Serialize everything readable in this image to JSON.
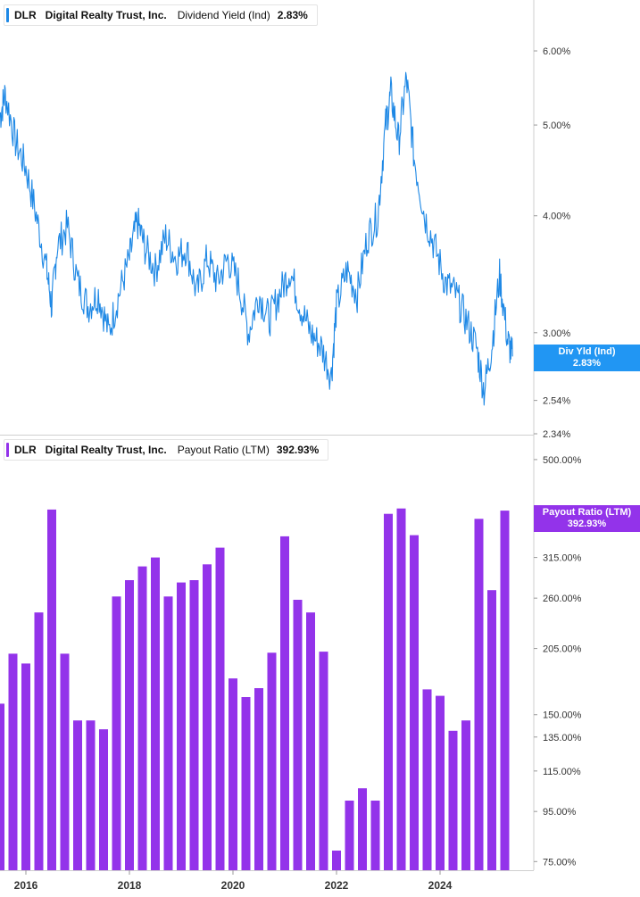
{
  "colors": {
    "line": "#1e88e5",
    "bar": "#9333ea",
    "axis": "#cfcfcf"
  },
  "top": {
    "ticker": "DLR",
    "company": "Digital Realty Trust, Inc.",
    "metric": "Dividend Yield (Ind)",
    "value": "2.83%",
    "flag_title": "Div Yld (Ind)",
    "flag_value": "2.83%"
  },
  "bottom": {
    "ticker": "DLR",
    "company": "Digital Realty Trust, Inc.",
    "metric": "Payout Ratio (LTM)",
    "value": "392.93%",
    "flag_title": "Payout Ratio (LTM)",
    "flag_value": "392.93%"
  },
  "chart_data": [
    {
      "type": "line",
      "series": [
        {
          "name": "Dividend Yield (Ind)"
        }
      ],
      "yscale": "log",
      "ylim": [
        2.34,
        6.8
      ],
      "yticks": [
        "6.00%",
        "5.00%",
        "4.00%",
        "3.00%",
        "2.54%",
        "2.34%"
      ],
      "ytick_values": [
        6.0,
        5.0,
        4.0,
        3.0,
        2.54,
        2.34
      ],
      "x": [
        2015.5,
        2015.6,
        2015.8,
        2016.0,
        2016.2,
        2016.4,
        2016.5,
        2016.6,
        2016.8,
        2017.0,
        2017.2,
        2017.4,
        2017.6,
        2017.8,
        2018.0,
        2018.15,
        2018.3,
        2018.5,
        2018.7,
        2018.9,
        2019.1,
        2019.3,
        2019.5,
        2019.7,
        2019.9,
        2020.1,
        2020.3,
        2020.5,
        2020.7,
        2020.9,
        2021.1,
        2021.3,
        2021.5,
        2021.7,
        2021.9,
        2022.0,
        2022.2,
        2022.4,
        2022.6,
        2022.8,
        2022.95,
        2023.05,
        2023.2,
        2023.35,
        2023.5,
        2023.7,
        2023.9,
        2024.1,
        2024.3,
        2024.5,
        2024.7,
        2024.85,
        2025.0,
        2025.15,
        2025.3,
        2025.4
      ],
      "y": [
        5.1,
        5.4,
        4.8,
        4.5,
        4.0,
        3.5,
        3.2,
        3.7,
        3.9,
        3.4,
        3.2,
        3.3,
        3.0,
        3.3,
        3.6,
        3.95,
        3.7,
        3.5,
        3.8,
        3.6,
        3.7,
        3.3,
        3.6,
        3.4,
        3.6,
        3.4,
        3.0,
        3.3,
        3.1,
        3.3,
        3.5,
        3.2,
        3.0,
        2.9,
        2.7,
        3.2,
        3.5,
        3.3,
        3.8,
        4.0,
        5.0,
        5.4,
        4.8,
        5.6,
        4.6,
        4.0,
        3.7,
        3.4,
        3.3,
        3.1,
        2.9,
        2.6,
        2.9,
        3.45,
        2.95,
        2.83
      ]
    },
    {
      "type": "bar",
      "series": [
        {
          "name": "Payout Ratio (LTM)"
        }
      ],
      "yscale": "log",
      "ylim": [
        72,
        560
      ],
      "yticks": [
        "500.00%",
        "315.00%",
        "260.00%",
        "205.00%",
        "150.00%",
        "135.00%",
        "115.00%",
        "95.00%",
        "75.00%"
      ],
      "ytick_values": [
        500,
        315,
        260,
        205,
        150,
        135,
        115,
        95,
        75
      ],
      "x": [
        2015.5,
        2015.75,
        2016.0,
        2016.25,
        2016.5,
        2016.75,
        2017.0,
        2017.25,
        2017.5,
        2017.75,
        2018.0,
        2018.25,
        2018.5,
        2018.75,
        2019.0,
        2019.25,
        2019.5,
        2019.75,
        2020.0,
        2020.25,
        2020.5,
        2020.75,
        2021.0,
        2021.25,
        2021.5,
        2021.75,
        2022.0,
        2022.25,
        2022.5,
        2022.75,
        2023.0,
        2023.25,
        2023.5,
        2023.75,
        2024.0,
        2024.25,
        2024.5,
        2024.75,
        2025.0,
        2025.25
      ],
      "values": [
        158,
        200,
        191,
        243,
        395,
        200,
        146,
        146,
        140,
        262,
        283,
        302,
        315,
        262,
        280,
        283,
        305,
        330,
        178,
        163,
        170,
        201,
        348,
        258,
        243,
        202,
        79,
        100,
        106,
        100,
        387,
        397,
        350,
        169,
        164,
        139,
        146,
        378,
        270,
        393
      ]
    }
  ],
  "xaxis": {
    "labels": [
      "2016",
      "2018",
      "2020",
      "2022",
      "2024"
    ],
    "years": [
      2016,
      2018,
      2020,
      2022,
      2024
    ]
  }
}
